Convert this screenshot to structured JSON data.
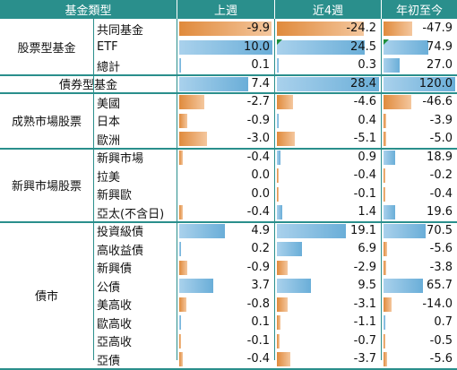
{
  "header": {
    "fund_type": "基金類型",
    "week": "上週",
    "four_weeks": "近4週",
    "ytd": "年初至今"
  },
  "colors": {
    "header_bg": "#2a8f8c",
    "positive": "#6aaed8",
    "negative": "#e08a3c"
  },
  "groups": [
    {
      "label": "股票型基金",
      "rows": [
        {
          "label": "共同基金",
          "w": -9.9,
          "w4": -24.2,
          "ytd": -47.9
        },
        {
          "label": "ETF",
          "w": 10.0,
          "w4": 24.5,
          "ytd": 74.9
        },
        {
          "label": "總計",
          "w": 0.1,
          "w4": 0.3,
          "ytd": 27.0
        }
      ]
    },
    {
      "label": "債券型基金",
      "rows": [
        {
          "label": "",
          "w": 7.4,
          "w4": 28.4,
          "ytd": 120.0
        }
      ]
    },
    {
      "label": "成熟市場股票",
      "rows": [
        {
          "label": "美國",
          "w": -2.7,
          "w4": -4.6,
          "ytd": -46.6
        },
        {
          "label": "日本",
          "w": -0.9,
          "w4": 0.4,
          "ytd": -3.9
        },
        {
          "label": "歐洲",
          "w": -3.0,
          "w4": -5.1,
          "ytd": -5.0
        }
      ]
    },
    {
      "label": "新興市場股票",
      "rows": [
        {
          "label": "新興市場",
          "w": -0.4,
          "w4": 0.9,
          "ytd": 18.9
        },
        {
          "label": "拉美",
          "w": 0.0,
          "w4": -0.4,
          "ytd": -0.2
        },
        {
          "label": "新興歐",
          "w": 0.0,
          "w4": -0.1,
          "ytd": -0.4
        },
        {
          "label": "亞太(不含日)",
          "w": -0.4,
          "w4": 1.4,
          "ytd": 19.6
        }
      ]
    },
    {
      "label": "債市",
      "rows": [
        {
          "label": "投資級債",
          "w": 4.9,
          "w4": 19.1,
          "ytd": 70.5
        },
        {
          "label": "高收益債",
          "w": 0.2,
          "w4": 6.9,
          "ytd": -5.6
        },
        {
          "label": "新興債",
          "w": -0.9,
          "w4": -2.9,
          "ytd": -3.8
        },
        {
          "label": "公債",
          "w": 3.7,
          "w4": 9.5,
          "ytd": 65.7
        },
        {
          "label": "美高收",
          "w": -0.8,
          "w4": -3.1,
          "ytd": -14.0
        },
        {
          "label": "歐高收",
          "w": 0.1,
          "w4": -1.1,
          "ytd": 0.7
        },
        {
          "label": "亞高收",
          "w": -0.1,
          "w4": -0.7,
          "ytd": -0.5
        },
        {
          "label": "亞債",
          "w": -0.4,
          "w4": -3.7,
          "ytd": -5.6
        }
      ]
    }
  ],
  "value_display": {
    "w": [
      "-9.9",
      "10.0",
      "0.1",
      "7.4",
      "-2.7",
      "-0.9",
      "-3.0",
      "-0.4",
      "0.0",
      "0.0",
      "-0.4",
      "4.9",
      "0.2",
      "-0.9",
      "3.7",
      "-0.8",
      "0.1",
      "-0.1",
      "-0.4"
    ],
    "w4": [
      "-24.2",
      "24.5",
      "0.3",
      "28.4",
      "-4.6",
      "0.4",
      "-5.1",
      "0.9",
      "-0.4",
      "-0.1",
      "1.4",
      "19.1",
      "6.9",
      "-2.9",
      "9.5",
      "-3.1",
      "-1.1",
      "-0.7",
      "-3.7"
    ],
    "ytd": [
      "-47.9",
      "74.9",
      "27.0",
      "120.0",
      "-46.6",
      "-3.9",
      "-5.0",
      "18.9",
      "-0.2",
      "-0.4",
      "19.6",
      "70.5",
      "-5.6",
      "-3.8",
      "65.7",
      "-14.0",
      "0.7",
      "-0.5",
      "-5.6"
    ]
  }
}
